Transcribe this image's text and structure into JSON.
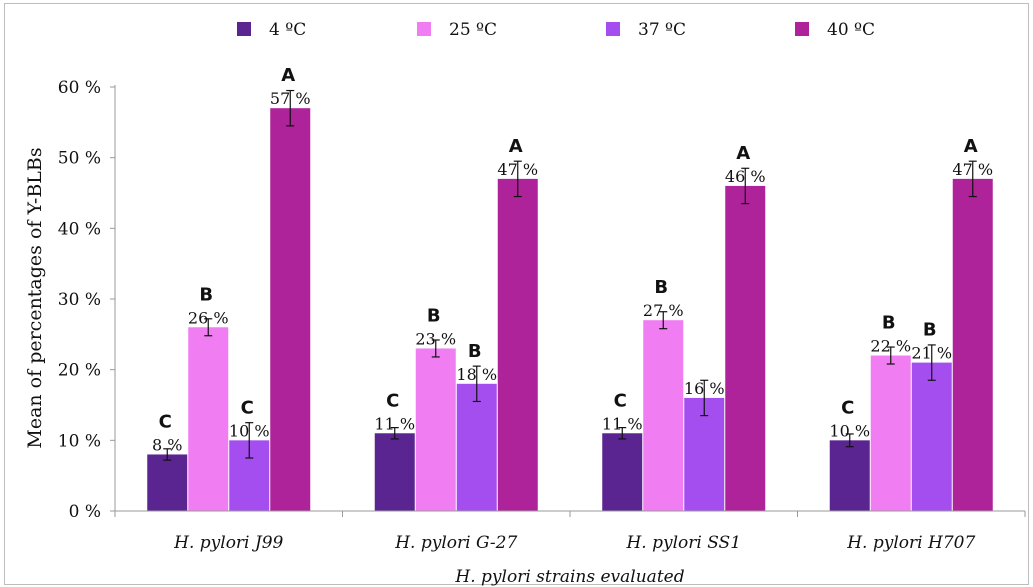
{
  "chart_data": {
    "type": "bar",
    "title": "",
    "xlabel": "H. pylori strains evaluated",
    "ylabel": "Mean of percentages of Y-BLBs",
    "ylim": [
      0,
      60
    ],
    "y_ticks": [
      "0 %",
      "10 %",
      "20 %",
      "30 %",
      "40 %",
      "50 %",
      "60 %"
    ],
    "y_tick_values": [
      0,
      10,
      20,
      30,
      40,
      50,
      60
    ],
    "categories": [
      "H. pylori J99",
      "H. pylori G-27",
      "H. pylori SS1",
      "H. pylori H707"
    ],
    "legend_position": "top",
    "grid": false,
    "series": [
      {
        "name": "4 ºC",
        "color": "#5a2590",
        "values": [
          8,
          11,
          11,
          10
        ],
        "errors": [
          0.8,
          0.8,
          0.8,
          0.9
        ],
        "labels": [
          "8 %",
          "11 %",
          "11 %",
          "10 %"
        ],
        "letters": [
          "C",
          "C",
          "C",
          "C"
        ]
      },
      {
        "name": "25 ºC",
        "color": "#f07df2",
        "values": [
          26,
          23,
          27,
          22
        ],
        "errors": [
          1.2,
          1.2,
          1.2,
          1.2
        ],
        "labels": [
          "26 %",
          "23 %",
          "27 %",
          "22 %"
        ],
        "letters": [
          "B",
          "B",
          "B",
          "B"
        ]
      },
      {
        "name": "37 ºC",
        "color": "#a54ef0",
        "values": [
          10,
          18,
          16,
          21
        ],
        "errors": [
          2.5,
          2.5,
          2.5,
          2.5
        ],
        "labels": [
          "10 %",
          "18 %",
          "16 %",
          "21 %"
        ],
        "letters": [
          "C",
          "B",
          "",
          "B"
        ]
      },
      {
        "name": "40 ºC",
        "color": "#ae2399",
        "values": [
          57,
          47,
          46,
          47
        ],
        "errors": [
          2.5,
          2.5,
          2.5,
          2.5
        ],
        "labels": [
          "57 %",
          "47 %",
          "46 %",
          "47 %"
        ],
        "letters": [
          "A",
          "A",
          "A",
          "A"
        ]
      }
    ]
  }
}
